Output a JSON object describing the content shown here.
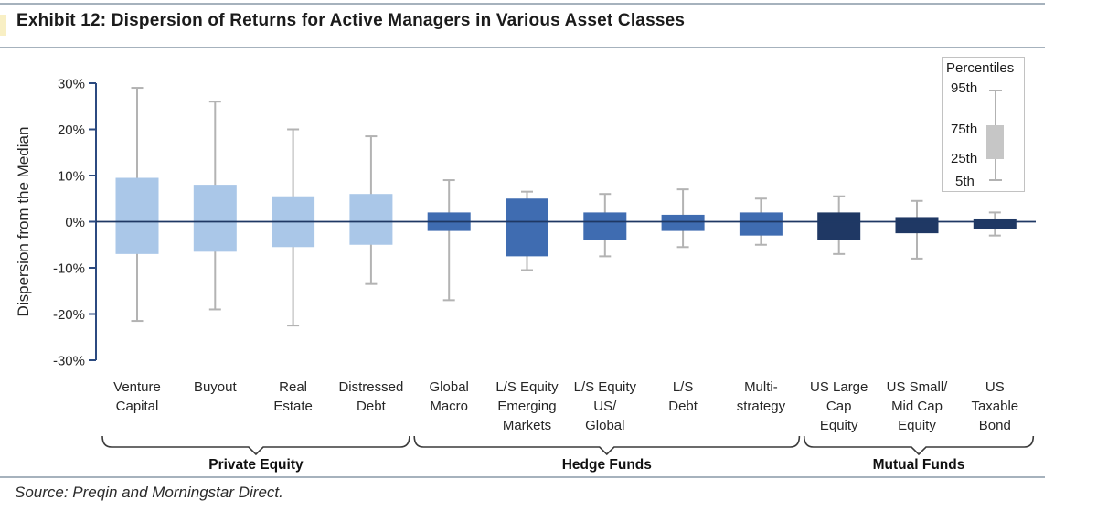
{
  "header": {
    "title": "Exhibit 12: Dispersion of Returns for Active Managers in Various Asset Classes"
  },
  "source": "Source: Preqin and Morningstar Direct.",
  "legend": {
    "title": "Percentiles",
    "labels": [
      "95th",
      "75th",
      "25th",
      "5th"
    ],
    "box_color": "#c6c6c6",
    "line_color": "#b2b2b2"
  },
  "chart_data": {
    "type": "boxplot",
    "title": "Exhibit 12: Dispersion of Returns for Active Managers in Various Asset Classes",
    "ylabel": "Dispersion from the Median",
    "ylim": [
      -30,
      30
    ],
    "yticks": [
      "30%",
      "20%",
      "10%",
      "0%",
      "-10%",
      "-20%",
      "-30%"
    ],
    "ytick_values": [
      30,
      20,
      10,
      0,
      -10,
      -20,
      -30
    ],
    "grid": false,
    "legend_position": "top-right",
    "colors": {
      "whisker": "#b3b3b3",
      "axis": "#2c4a80",
      "zero_line": "#1f3864"
    },
    "groups": [
      {
        "label": "Private Equity",
        "color": "#aac7e8",
        "categories": [
          {
            "name": "Venture Capital",
            "label_lines": [
              "Venture",
              "Capital"
            ],
            "p5": -21.5,
            "p25": -7,
            "p75": 9.5,
            "p95": 29
          },
          {
            "name": "Buyout",
            "label_lines": [
              "Buyout"
            ],
            "p5": -19,
            "p25": -6.5,
            "p75": 8,
            "p95": 26
          },
          {
            "name": "Real Estate",
            "label_lines": [
              "Real",
              "Estate"
            ],
            "p5": -22.5,
            "p25": -5.5,
            "p75": 5.5,
            "p95": 20
          },
          {
            "name": "Distressed Debt",
            "label_lines": [
              "Distressed",
              "Debt"
            ],
            "p5": -13.5,
            "p25": -5,
            "p75": 6,
            "p95": 18.5
          }
        ]
      },
      {
        "label": "Hedge Funds",
        "color": "#3f6cb1",
        "categories": [
          {
            "name": "Global Macro",
            "label_lines": [
              "Global",
              "Macro"
            ],
            "p5": -17,
            "p25": -2,
            "p75": 2,
            "p95": 9
          },
          {
            "name": "L/S Equity Emerging Markets",
            "label_lines": [
              "L/S Equity",
              "Emerging",
              "Markets"
            ],
            "p5": -10.5,
            "p25": -7.5,
            "p75": 5,
            "p95": 6.5
          },
          {
            "name": "L/S Equity US/Global",
            "label_lines": [
              "L/S Equity",
              "US/",
              "Global"
            ],
            "p5": -7.5,
            "p25": -4,
            "p75": 2,
            "p95": 6
          },
          {
            "name": "L/S Debt",
            "label_lines": [
              "L/S",
              "Debt"
            ],
            "p5": -5.5,
            "p25": -2,
            "p75": 1.5,
            "p95": 7
          },
          {
            "name": "Multi-strategy",
            "label_lines": [
              "Multi-",
              "strategy"
            ],
            "p5": -5,
            "p25": -3,
            "p75": 2,
            "p95": 5
          }
        ]
      },
      {
        "label": "Mutual Funds",
        "color": "#1f3864",
        "categories": [
          {
            "name": "US Large Cap Equity",
            "label_lines": [
              "US Large",
              "Cap",
              "Equity"
            ],
            "p5": -7,
            "p25": -4,
            "p75": 2,
            "p95": 5.5
          },
          {
            "name": "US Small/Mid Cap Equity",
            "label_lines": [
              "US Small/",
              "Mid Cap",
              "Equity"
            ],
            "p5": -8,
            "p25": -2.5,
            "p75": 1,
            "p95": 4.5
          },
          {
            "name": "US Taxable Bond",
            "label_lines": [
              "US",
              "Taxable",
              "Bond"
            ],
            "p5": -3,
            "p25": -1.5,
            "p75": 0.5,
            "p95": 2
          }
        ]
      }
    ]
  }
}
